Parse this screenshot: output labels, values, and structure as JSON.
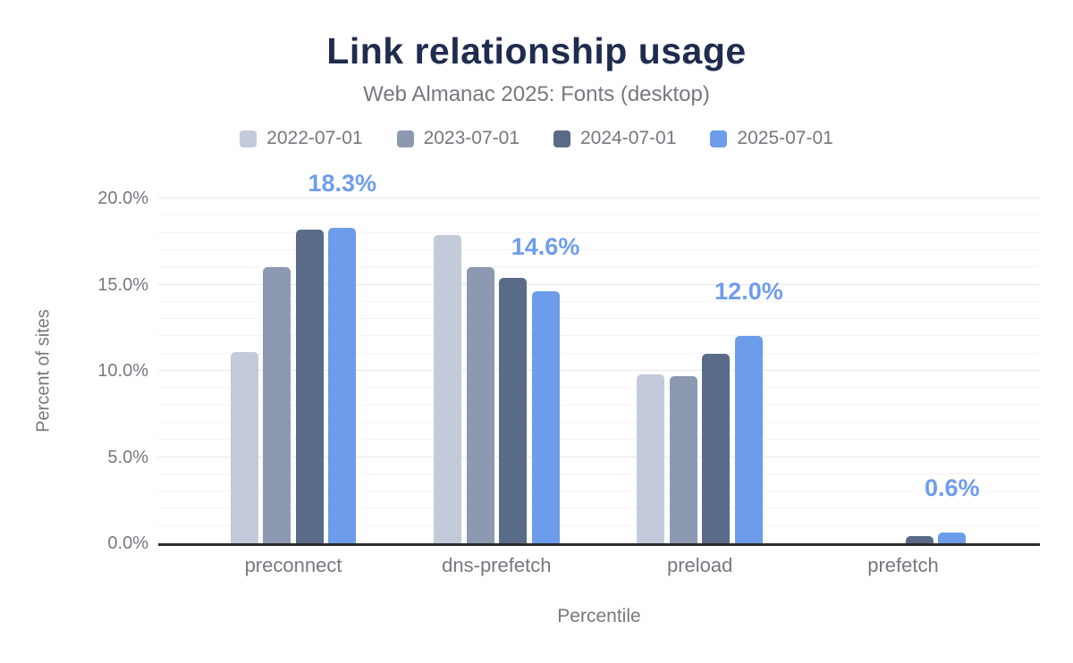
{
  "colors": {
    "background": "#ffffff",
    "title": "#1f2c4e",
    "axis_text": "#75787e",
    "annotation": "#6e9dec",
    "axis_line": "#2d2d2d",
    "gridline_major": "#e9e9ec",
    "gridline_minor": "#f4f4f6"
  },
  "chart_data": {
    "type": "bar",
    "title": "Link relationship usage",
    "subtitle": "Web Almanac 2025: Fonts (desktop)",
    "categories": [
      "preconnect",
      "dns-prefetch",
      "preload",
      "prefetch"
    ],
    "series": [
      {
        "name": "2022-07-01",
        "color": "#c3cad9",
        "values": [
          11.1,
          17.9,
          9.8,
          0.0
        ]
      },
      {
        "name": "2023-07-01",
        "color": "#8d99b0",
        "values": [
          16.0,
          16.0,
          9.7,
          0.0
        ]
      },
      {
        "name": "2024-07-01",
        "color": "#5a6b87",
        "values": [
          18.2,
          15.4,
          11.0,
          0.4
        ]
      },
      {
        "name": "2025-07-01",
        "color": "#6c9cea",
        "values": [
          18.3,
          14.6,
          12.0,
          0.6
        ]
      }
    ],
    "annotations": [
      {
        "category": "preconnect",
        "series": "2025-07-01",
        "label": "18.3%"
      },
      {
        "category": "dns-prefetch",
        "series": "2025-07-01",
        "label": "14.6%"
      },
      {
        "category": "preload",
        "series": "2025-07-01",
        "label": "12.0%"
      },
      {
        "category": "prefetch",
        "series": "2025-07-01",
        "label": "0.6%"
      }
    ],
    "xlabel": "Percentile",
    "ylabel": "Percent of sites",
    "ylim": [
      0,
      20
    ],
    "yticks": [
      {
        "value": 0,
        "label": "0.0%"
      },
      {
        "value": 5,
        "label": "5.0%"
      },
      {
        "value": 10,
        "label": "10.0%"
      },
      {
        "value": 15,
        "label": "15.0%"
      },
      {
        "value": 20,
        "label": "20.0%"
      }
    ],
    "grid": {
      "minor_step_pct": 1,
      "major_step_pct": 5
    },
    "legend_position": "top",
    "value_unit": "%"
  }
}
